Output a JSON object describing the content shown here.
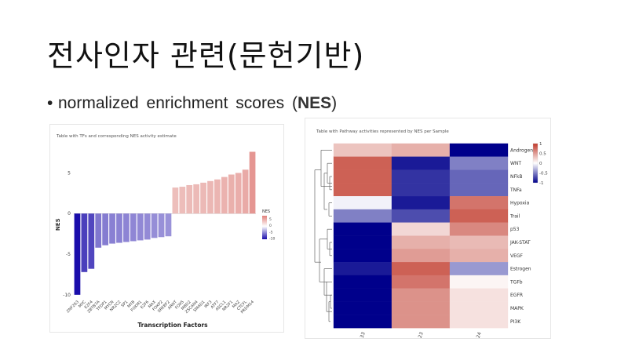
{
  "slide": {
    "title": "전사인자 관련(문헌기반)",
    "bullet_text": "normalized  enrichment  scores (",
    "bullet_bold": "NES",
    "bullet_close": ")"
  },
  "chart_data": [
    {
      "type": "bar",
      "title": "Table with TFs and corresponding NES activity estimate",
      "xlabel": "Transcription Factors",
      "ylabel": "NES",
      "ylim": [
        -10.5,
        9
      ],
      "yticks": [
        -10,
        -5,
        0,
        5
      ],
      "legend": {
        "title": "NES",
        "ticks": [
          5,
          0,
          -5,
          -10
        ],
        "placement": "right"
      },
      "color_scale": {
        "low": "#1a0dab",
        "mid": "#ffffff",
        "high": "#c0392b"
      },
      "categories": [
        "ZNF263",
        "MYC",
        "E2F4",
        "ZBTB7A",
        "TFDP1",
        "MYCN",
        "NR2C2",
        "SP1",
        "MYB",
        "FOXM1",
        "E2F6",
        "MAX",
        "FOXP2",
        "SREBF2",
        "ARNT",
        "FOXS",
        "MBD2",
        "ZSCAN4",
        "SMAD1",
        "IRF3",
        "ATF7",
        "ASCL1",
        "NR2F1",
        "MAZ",
        "CTCFL",
        "PRDM14"
      ],
      "values": [
        -10.0,
        -7.2,
        -6.8,
        -4.2,
        -3.9,
        -3.7,
        -3.6,
        -3.5,
        -3.4,
        -3.3,
        -3.2,
        -3.0,
        -2.9,
        -2.8,
        3.2,
        3.3,
        3.5,
        3.6,
        3.8,
        4.0,
        4.2,
        4.5,
        4.8,
        5.0,
        5.4,
        7.6
      ]
    },
    {
      "type": "heatmap",
      "title": "Table with Pathway activities represented by NES per Sample",
      "columns": [
        "p33",
        "p23",
        "p24"
      ],
      "rows": [
        "Androgen",
        "WNT",
        "NFkB",
        "TNFa",
        "Hypoxia",
        "Trail",
        "p53",
        "JAK-STAT",
        "VEGF",
        "Estrogen",
        "TGFb",
        "EGFR",
        "MAPK",
        "PI3K"
      ],
      "values": [
        [
          0.3,
          0.4,
          -1.0
        ],
        [
          0.8,
          -0.9,
          -0.5
        ],
        [
          0.8,
          -0.8,
          -0.6
        ],
        [
          0.8,
          -0.8,
          -0.6
        ],
        [
          -0.05,
          -0.9,
          0.7
        ],
        [
          -0.5,
          -0.7,
          0.8
        ],
        [
          -1.0,
          0.2,
          0.6
        ],
        [
          -1.0,
          0.4,
          0.35
        ],
        [
          -1.0,
          0.5,
          0.4
        ],
        [
          -0.9,
          0.8,
          -0.4
        ],
        [
          -1.0,
          0.7,
          0.05
        ],
        [
          -1.0,
          0.55,
          0.15
        ],
        [
          -1.0,
          0.55,
          0.15
        ],
        [
          -1.0,
          0.55,
          0.15
        ]
      ],
      "legend_ticks": [
        1,
        0.5,
        0,
        -0.5,
        -1
      ],
      "legend_placement": "right",
      "color_scale": {
        "low": "#00008b",
        "mid": "#ffffff",
        "high": "#c0392b"
      }
    }
  ]
}
